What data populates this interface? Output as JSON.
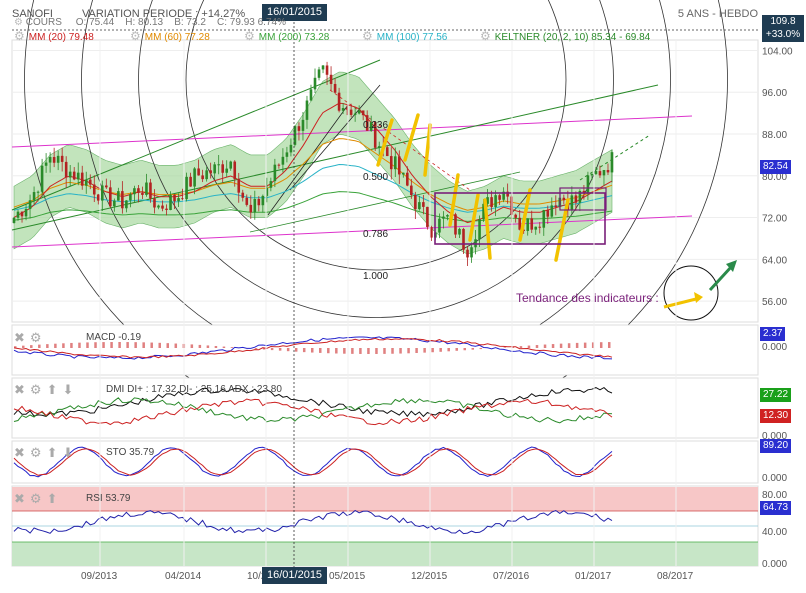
{
  "header": {
    "ticker": "SANOFI",
    "variation": "VARIATION PERIODE : +14.27%",
    "cursor_date": "16/01/2015",
    "date_range": "5 ANS - HEBDO",
    "top_right_value": "109.8",
    "top_right_pct": "+33.0%"
  },
  "cours": {
    "label": "COURS",
    "o": "O: 75.44",
    "h": "H: 80.13",
    "b": "B: 73.2",
    "c": "C: 79.93 6.74%"
  },
  "legend": [
    {
      "label": "MM (20) 79.48",
      "color": "#cc2222"
    },
    {
      "label": "MM (60) 77.28",
      "color": "#e08a00"
    },
    {
      "label": "MM (200) 73.28",
      "color": "#3aa33a"
    },
    {
      "label": "MM (100) 77.56",
      "color": "#29b3c7"
    },
    {
      "label": "KELTNER (20, 2, 10) 85.34 - 69.84",
      "color": "#2a8a2a"
    }
  ],
  "fib_labels": [
    "0.236",
    "0.500",
    "0.786",
    "1.000"
  ],
  "current_price": "82.54",
  "tendance": "Tendance des indicateurs :",
  "indicators": {
    "macd": {
      "label": "MACD -0.19",
      "tag1": "2.37",
      "tag2": "0.000"
    },
    "dmi": {
      "label": "DMI DI+ : 17.32 DI- : 25.16 ADX : 23.80",
      "tag1": "27.22",
      "tag2": "12.30",
      "tag3": "0.000"
    },
    "sto": {
      "label": "STO 35.79",
      "tag1": "89.20",
      "tag2": "0.000"
    },
    "rsi": {
      "label": "RSI 53.79",
      "tag1": "64.73",
      "ticks": [
        "80.00",
        "40.00",
        "0.000"
      ]
    }
  },
  "colors": {
    "up": "#2a8a2a",
    "down": "#b32222",
    "keltner_fill": "#a8d8a0",
    "tag_blue": "#2a2fd0",
    "tag_green": "#1aa01a",
    "tag_red": "#d02222",
    "badge": "#1f3c52"
  },
  "chart_data": {
    "type": "line",
    "title": "SANOFI",
    "xlabel": "",
    "ylabel": "",
    "ylim": [
      52,
      106
    ],
    "y_ticks": [
      56,
      64,
      72,
      80,
      88,
      96,
      104
    ],
    "x_ticks": [
      "09/2013",
      "04/2014",
      "10/2014",
      "05/2015",
      "12/2015",
      "07/2016",
      "01/2017",
      "08/2017"
    ],
    "series": [
      {
        "name": "COURS",
        "values": [
          72,
          76,
          84,
          81,
          79,
          76,
          75,
          78,
          74,
          76,
          80,
          81,
          83,
          72,
          78,
          85,
          92,
          100,
          94,
          92,
          87,
          82,
          76,
          70,
          72,
          66,
          74,
          78,
          70,
          72,
          76,
          75,
          80,
          83
        ]
      },
      {
        "name": "MM (20)",
        "values": [
          72,
          74,
          78,
          80,
          79,
          77,
          76,
          77,
          76,
          76,
          77,
          79,
          80,
          78,
          78,
          81,
          86,
          92,
          94,
          93,
          89,
          85,
          80,
          76,
          73,
          71,
          72,
          74,
          73,
          73,
          74,
          75,
          77,
          79
        ]
      }
    ]
  }
}
